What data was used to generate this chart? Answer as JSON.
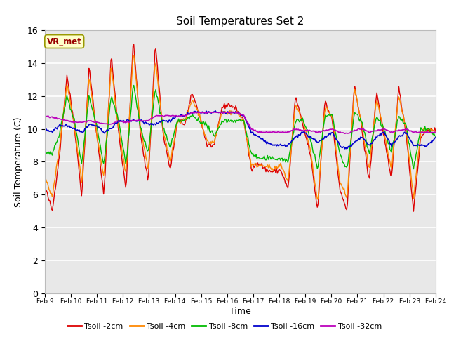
{
  "title": "Soil Temperatures Set 2",
  "xlabel": "Time",
  "ylabel": "Soil Temperature (C)",
  "ylim": [
    0,
    16
  ],
  "yticks": [
    0,
    2,
    4,
    6,
    8,
    10,
    12,
    14,
    16
  ],
  "plot_bg_color": "#e8e8e8",
  "fig_bg_color": "#ffffff",
  "grid_color": "#ffffff",
  "annotation_text": "VR_met",
  "annotation_box_color": "#ffffcc",
  "annotation_border_color": "#999900",
  "annotation_text_color": "#990000",
  "series_colors": [
    "#dd0000",
    "#ff8800",
    "#00bb00",
    "#0000cc",
    "#bb00bb"
  ],
  "series_labels": [
    "Tsoil -2cm",
    "Tsoil -4cm",
    "Tsoil -8cm",
    "Tsoil -16cm",
    "Tsoil -32cm"
  ],
  "x_tick_labels": [
    "Feb 9",
    "Feb 10",
    "Feb 11",
    "Feb 12",
    "Feb 13",
    "Feb 14",
    "Feb 15",
    "Feb 16",
    "Feb 17",
    "Feb 18",
    "Feb 19",
    "Feb 20",
    "Feb 21",
    "Feb 22",
    "Feb 23",
    "Feb 24"
  ],
  "n_points": 480
}
